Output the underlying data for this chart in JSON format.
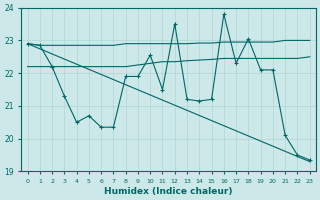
{
  "xlabel": "Humidex (Indice chaleur)",
  "background_color": "#cce8e8",
  "grid_color": "#b0d4d4",
  "line_color": "#006666",
  "xlim": [
    -0.5,
    23.5
  ],
  "ylim": [
    19,
    24
  ],
  "yticks": [
    19,
    20,
    21,
    22,
    23,
    24
  ],
  "xticks": [
    0,
    1,
    2,
    3,
    4,
    5,
    6,
    7,
    8,
    9,
    10,
    11,
    12,
    13,
    14,
    15,
    16,
    17,
    18,
    19,
    20,
    21,
    22,
    23
  ],
  "series": [
    {
      "x": [
        0,
        1,
        2,
        3,
        4,
        5,
        6,
        7,
        8,
        9,
        10,
        11,
        12,
        13,
        14,
        15,
        16,
        17,
        18,
        19,
        20,
        21,
        22,
        23
      ],
      "y": [
        22.9,
        22.85,
        22.85,
        22.85,
        22.85,
        22.85,
        22.85,
        22.85,
        22.9,
        22.9,
        22.9,
        22.9,
        22.9,
        22.9,
        22.92,
        22.92,
        22.95,
        22.95,
        22.95,
        22.95,
        22.95,
        23.0,
        23.0,
        23.0
      ],
      "marker": false
    },
    {
      "x": [
        0,
        1,
        2,
        3,
        4,
        5,
        6,
        7,
        8,
        9,
        10,
        11,
        12,
        13,
        14,
        15,
        16,
        17,
        18,
        19,
        20,
        21,
        22,
        23
      ],
      "y": [
        22.2,
        22.2,
        22.2,
        22.2,
        22.2,
        22.2,
        22.2,
        22.2,
        22.2,
        22.25,
        22.3,
        22.35,
        22.35,
        22.38,
        22.4,
        22.42,
        22.45,
        22.45,
        22.45,
        22.45,
        22.45,
        22.45,
        22.45,
        22.5
      ],
      "marker": false
    },
    {
      "x": [
        0,
        1,
        2,
        3,
        4,
        5,
        6,
        7,
        8,
        9,
        10,
        11,
        12,
        13,
        14,
        15,
        16,
        17,
        18,
        19,
        20,
        21,
        22,
        23
      ],
      "y": [
        22.9,
        22.85,
        22.2,
        21.3,
        20.5,
        20.7,
        20.35,
        20.35,
        21.9,
        21.9,
        22.55,
        21.5,
        23.5,
        21.2,
        21.15,
        21.2,
        23.8,
        22.3,
        23.05,
        22.1,
        22.1,
        20.1,
        19.5,
        19.35
      ],
      "marker": true
    },
    {
      "x": [
        0,
        23
      ],
      "y": [
        22.9,
        19.3
      ],
      "marker": false
    }
  ]
}
